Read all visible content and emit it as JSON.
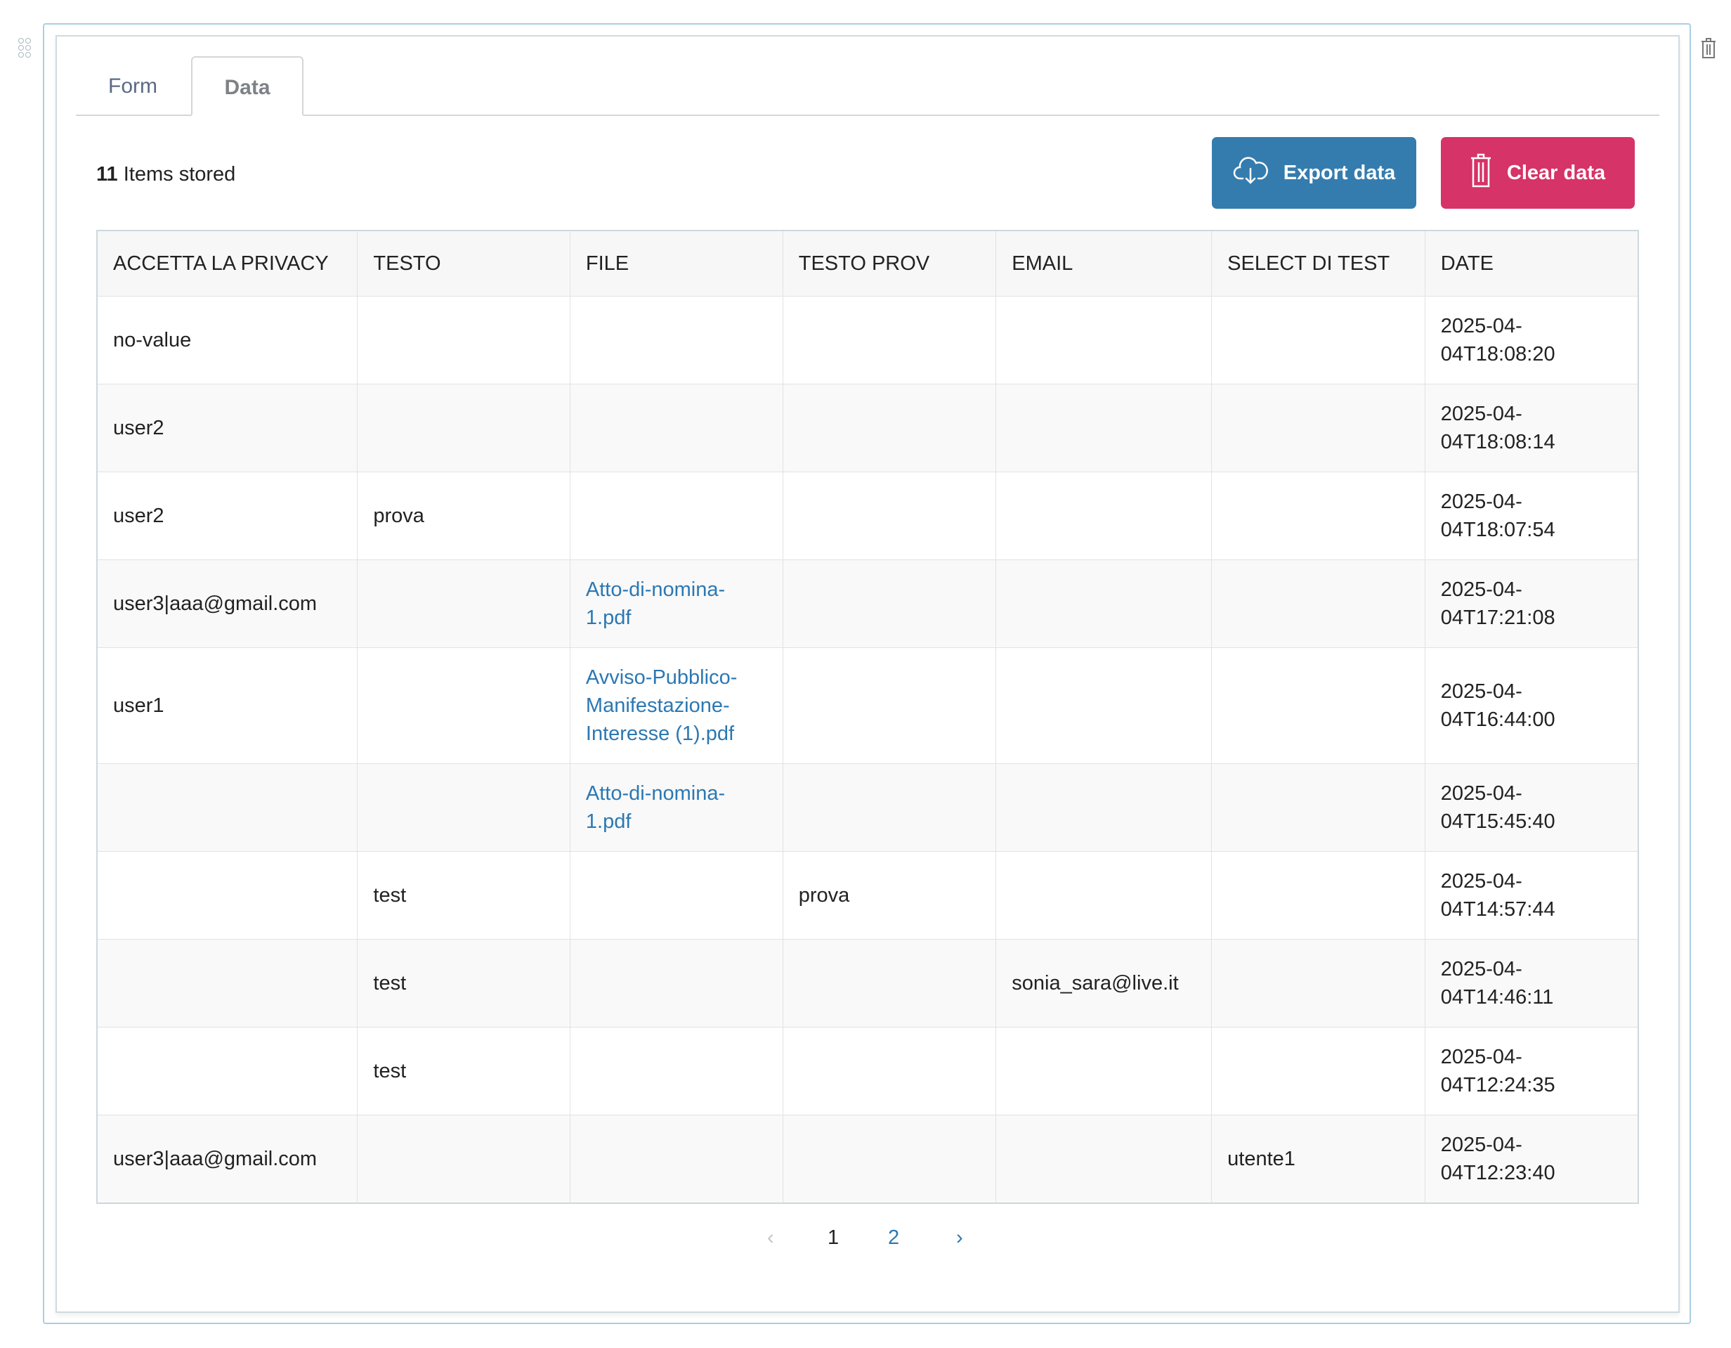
{
  "tabs": [
    {
      "label": "Form"
    },
    {
      "label": "Data"
    }
  ],
  "summary": {
    "count": "11",
    "label": "Items stored"
  },
  "buttons": {
    "export": "Export data",
    "clear": "Clear data"
  },
  "colors": {
    "export": "#357cae",
    "clear": "#d63368",
    "link": "#2b78b3"
  },
  "table": {
    "headers": [
      "ACCETTA LA PRIVACY",
      "TESTO",
      "FILE",
      "TESTO PROV",
      "EMAIL",
      "SELECT DI TEST",
      "DATE"
    ],
    "rows": [
      [
        "no-value",
        "",
        "",
        "",
        "",
        "",
        "2025-04-04T18:08:20"
      ],
      [
        "user2",
        "",
        "",
        "",
        "",
        "",
        "2025-04-04T18:08:14"
      ],
      [
        "user2",
        "prova",
        "",
        "",
        "",
        "",
        "2025-04-04T18:07:54"
      ],
      [
        "user3|aaa@gmail.com",
        "",
        "Atto-di-nomina-1.pdf",
        "",
        "",
        "",
        "2025-04-04T17:21:08"
      ],
      [
        "user1",
        "",
        "Avviso-Pubblico-Manifestazione-Interesse (1).pdf",
        "",
        "",
        "",
        "2025-04-04T16:44:00"
      ],
      [
        "",
        "",
        "Atto-di-nomina-1.pdf",
        "",
        "",
        "",
        "2025-04-04T15:45:40"
      ],
      [
        "",
        "test",
        "",
        "prova",
        "",
        "",
        "2025-04-04T14:57:44"
      ],
      [
        "",
        "test",
        "",
        "",
        "sonia_sara@live.it",
        "",
        "2025-04-04T14:46:11"
      ],
      [
        "",
        "test",
        "",
        "",
        "",
        "",
        "2025-04-04T12:24:35"
      ],
      [
        "user3|aaa@gmail.com",
        "",
        "",
        "",
        "",
        "utente1",
        "2025-04-04T12:23:40"
      ]
    ]
  },
  "pagination": {
    "pages": [
      "1",
      "2"
    ],
    "current": "1",
    "prev": "‹",
    "next": "›"
  }
}
